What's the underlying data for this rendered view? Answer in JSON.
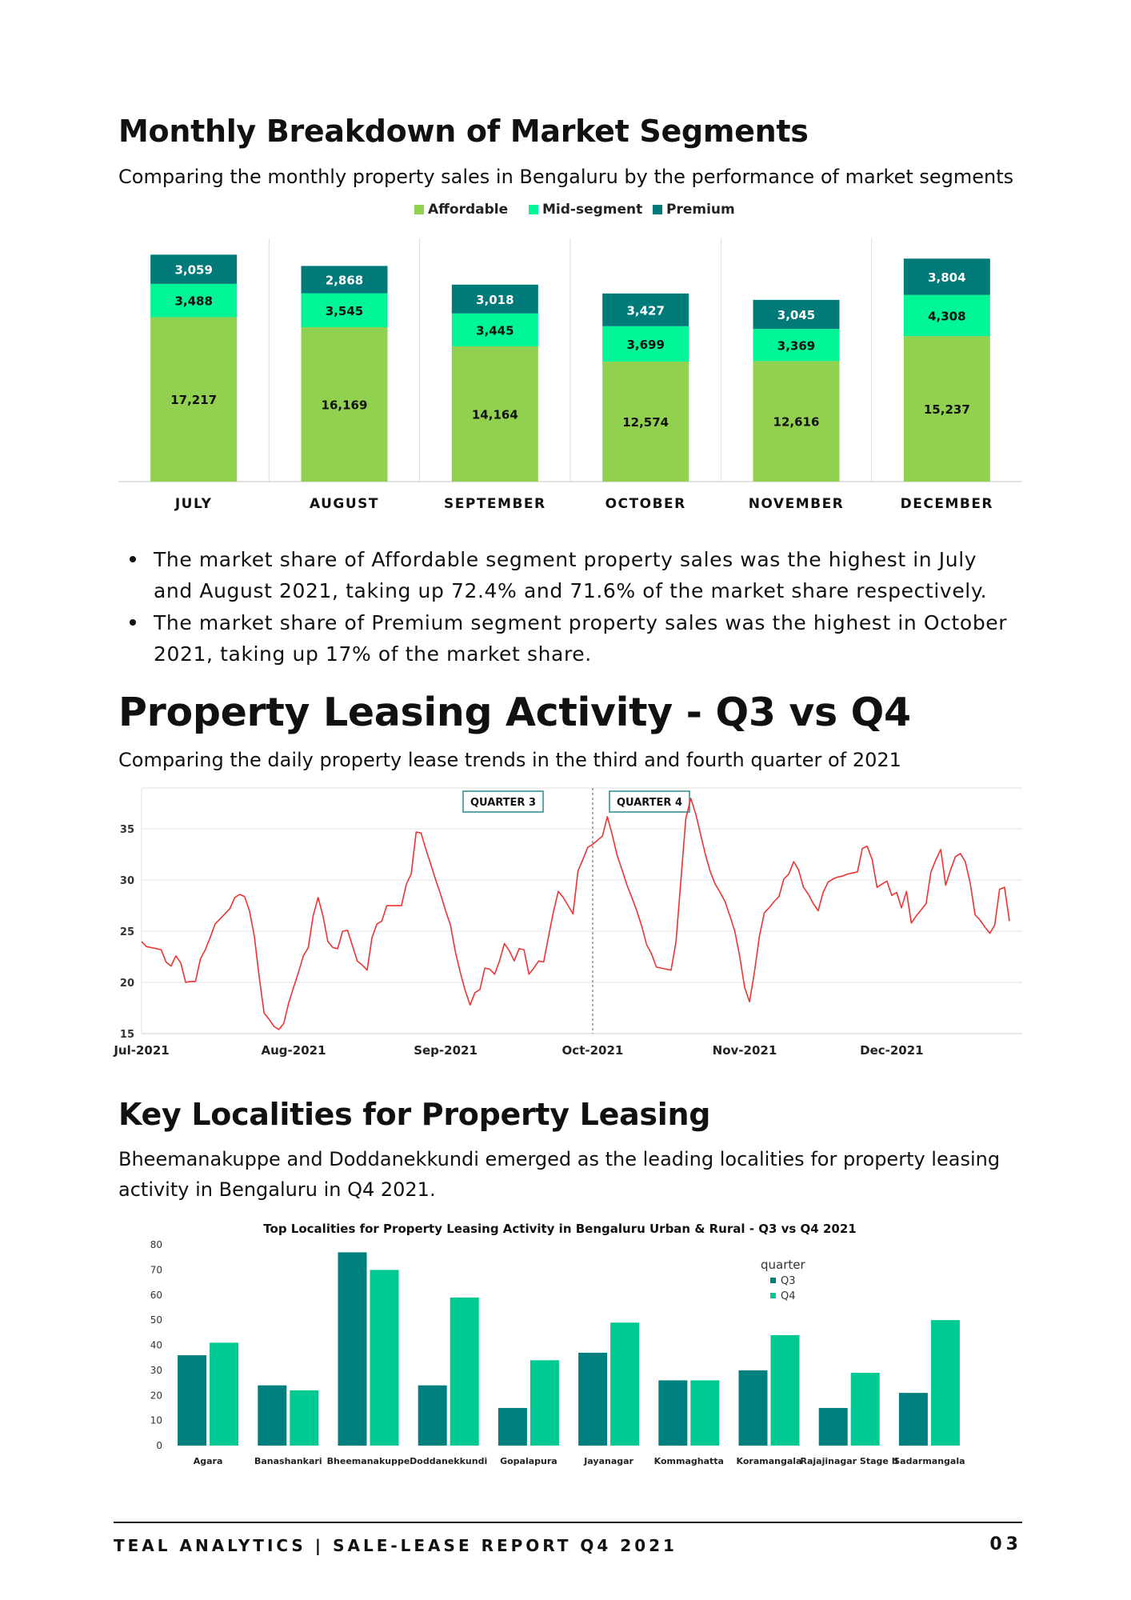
{
  "section1": {
    "title": "Monthly Breakdown of Market Segments",
    "subtitle": "Comparing the monthly property sales in Bengaluru by the performance of market segments"
  },
  "chart1": {
    "type": "bar",
    "stacked": true,
    "categories": [
      "JULY",
      "AUGUST",
      "SEPTEMBER",
      "OCTOBER",
      "NOVEMBER",
      "DECEMBER"
    ],
    "series": [
      {
        "name": "Affordable",
        "color": "#92d050",
        "values": [
          17217,
          16169,
          14164,
          12574,
          12616,
          15237
        ],
        "labels": [
          "17,217",
          "16,169",
          "14,164",
          "12,574",
          "12,616",
          "15,237"
        ]
      },
      {
        "name": "Mid-segment",
        "color": "#00f597",
        "values": [
          3488,
          3545,
          3445,
          3699,
          3369,
          4308
        ],
        "labels": [
          "3,488",
          "3,545",
          "3,445",
          "3,699",
          "3,369",
          "4,308"
        ]
      },
      {
        "name": "Premium",
        "color": "#007b7a",
        "values": [
          3059,
          2868,
          3018,
          3427,
          3045,
          3804
        ],
        "labels": [
          "3,059",
          "2,868",
          "3,018",
          "3,427",
          "3,045",
          "3,804"
        ]
      }
    ],
    "legend": "top-center"
  },
  "bullets": [
    "The market share of Affordable segment property sales was the highest in July and August 2021, taking up 72.4% and 71.6% of the market share respectively.",
    "The market share of Premium segment property sales was the highest in October 2021, taking up 17% of the market share."
  ],
  "section2": {
    "title": "Property Leasing Activity - Q3 vs Q4",
    "subtitle": "Comparing the daily property lease trends in the third and fourth quarter of 2021"
  },
  "chart2": {
    "type": "line",
    "x_labels": [
      "Jul-2021",
      "Aug-2021",
      "Sep-2021",
      "Oct-2021",
      "Nov-2021",
      "Dec-2021"
    ],
    "y_ticks": [
      15,
      20,
      25,
      30,
      35
    ],
    "ylim": [
      15,
      39
    ],
    "line_color": "#ee3333",
    "annotations": [
      "QUARTER 3",
      "QUARTER 4"
    ],
    "divider": "Oct-2021",
    "grid": true,
    "values": [
      24.0,
      23.5,
      23.4,
      23.3,
      23.2,
      22.0,
      21.6,
      22.6,
      21.9,
      20.0,
      20.1,
      20.1,
      22.3,
      23.2,
      24.4,
      25.7,
      26.2,
      26.7,
      27.2,
      28.3,
      28.6,
      28.4,
      27.0,
      24.5,
      20.5,
      17.0,
      16.4,
      15.7,
      15.4,
      16.0,
      18.0,
      19.5,
      21.0,
      22.6,
      23.4,
      26.5,
      28.3,
      26.5,
      24.0,
      23.4,
      23.3,
      25.0,
      25.1,
      23.6,
      22.1,
      21.7,
      21.2,
      24.4,
      25.7,
      26.0,
      27.5,
      27.5,
      27.5,
      27.5,
      29.6,
      30.6,
      34.7,
      34.6,
      33.0,
      31.5,
      30.0,
      28.6,
      27.0,
      25.6,
      23.0,
      21.0,
      19.2,
      17.8,
      19.0,
      19.3,
      21.4,
      21.3,
      20.8,
      22.1,
      23.8,
      23.1,
      22.1,
      23.3,
      23.2,
      20.8,
      21.4,
      22.1,
      22.0,
      24.5,
      26.9,
      28.9,
      28.3,
      27.5,
      26.7,
      30.9,
      32.0,
      33.2,
      33.5,
      33.9,
      34.3,
      36.2,
      34.4,
      32.4,
      31.0,
      29.5,
      28.3,
      27.0,
      25.5,
      23.7,
      22.8,
      21.5,
      21.4,
      21.3,
      21.2,
      24.0,
      30.0,
      36.0,
      38.0,
      36.5,
      34.5,
      32.5,
      30.8,
      29.6,
      28.8,
      27.9,
      26.5,
      25.0,
      22.5,
      19.5,
      18.1,
      21.0,
      24.5,
      26.8,
      27.3,
      27.9,
      28.4,
      30.1,
      30.6,
      31.8,
      31.0,
      29.3,
      28.6,
      27.7,
      27.0,
      28.8,
      29.8,
      30.1,
      30.3,
      30.4,
      30.6,
      30.7,
      30.8,
      33.1,
      33.3,
      32.0,
      29.3,
      29.6,
      29.9,
      28.5,
      28.8,
      27.3,
      28.9,
      25.8,
      26.5,
      27.1,
      27.7,
      30.8,
      32.0,
      33.0,
      29.5,
      31.0,
      32.3,
      32.6,
      31.8,
      29.7,
      26.6,
      26.1,
      25.4,
      24.8,
      25.6,
      29.1,
      29.3,
      26.0
    ]
  },
  "section3": {
    "title": "Key Localities for Property Leasing",
    "subtitle": "Bheemanakuppe and Doddanekkundi emerged as the leading localities for property leasing activity in Bengaluru in Q4 2021."
  },
  "chart3": {
    "type": "bar",
    "title": "Top Localities for Property Leasing Activity in Bengaluru Urban & Rural - Q3 vs Q4 2021",
    "legend_title": "quarter",
    "legend": "top-right",
    "categories": [
      "Agara",
      "Banashankari",
      "Bheemanakuppe",
      "Doddanekkundi",
      "Gopalapura",
      "Jayanagar",
      "Kommaghatta",
      "Koramangala",
      "Rajajinagar Stage II",
      "Sadarmangala"
    ],
    "series": [
      {
        "name": "Q3",
        "color": "#007f7f",
        "values": [
          36,
          24,
          77,
          24,
          15,
          37,
          26,
          30,
          15,
          21
        ]
      },
      {
        "name": "Q4",
        "color": "#00c994",
        "values": [
          41,
          22,
          70,
          59,
          34,
          49,
          26,
          44,
          29,
          50
        ]
      }
    ],
    "y_ticks": [
      0,
      10,
      20,
      30,
      40,
      50,
      60,
      70,
      80
    ],
    "ylim": [
      0,
      80
    ]
  },
  "footer": {
    "left": "TEAL ANALYTICS | SALE-LEASE REPORT Q4 2021",
    "right": "03"
  }
}
